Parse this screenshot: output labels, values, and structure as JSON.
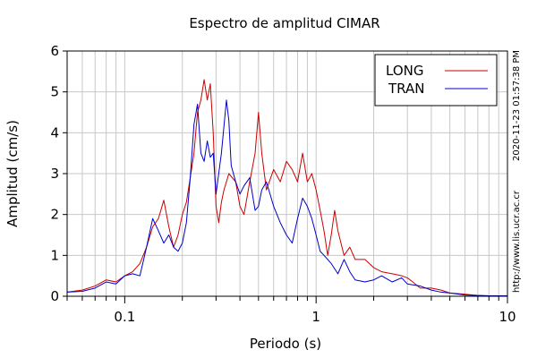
{
  "chart_data": {
    "type": "line",
    "title": "Espectro de amplitud CIMAR",
    "xlabel": "Periodo (s)",
    "ylabel": "Amplitud (cm/s)",
    "x_scale": "log",
    "xlim": [
      0.05,
      10
    ],
    "ylim": [
      0,
      6
    ],
    "x_ticks": [
      {
        "value": 0.1,
        "label": "0.1"
      },
      {
        "value": 1,
        "label": "1"
      },
      {
        "value": 10,
        "label": "10"
      }
    ],
    "y_ticks": [
      {
        "value": 0,
        "label": "0"
      },
      {
        "value": 1,
        "label": "1"
      },
      {
        "value": 2,
        "label": "2"
      },
      {
        "value": 3,
        "label": "3"
      },
      {
        "value": 4,
        "label": "4"
      },
      {
        "value": 5,
        "label": "5"
      },
      {
        "value": 6,
        "label": "6"
      }
    ],
    "grid": true,
    "legend_position": "top-right",
    "series": [
      {
        "name": "LONG",
        "color": "#cc0000",
        "x": [
          0.05,
          0.06,
          0.07,
          0.08,
          0.09,
          0.1,
          0.11,
          0.12,
          0.13,
          0.14,
          0.15,
          0.16,
          0.17,
          0.18,
          0.19,
          0.2,
          0.21,
          0.22,
          0.23,
          0.24,
          0.25,
          0.26,
          0.27,
          0.28,
          0.29,
          0.3,
          0.31,
          0.32,
          0.33,
          0.35,
          0.38,
          0.4,
          0.42,
          0.45,
          0.48,
          0.5,
          0.52,
          0.55,
          0.6,
          0.65,
          0.7,
          0.75,
          0.8,
          0.85,
          0.9,
          0.95,
          1.0,
          1.05,
          1.1,
          1.15,
          1.2,
          1.25,
          1.3,
          1.4,
          1.5,
          1.6,
          1.8,
          2.0,
          2.2,
          2.5,
          2.8,
          3.0,
          3.2,
          3.5,
          4.0,
          4.5,
          5.0,
          6.0,
          7.0,
          8.0,
          9.0,
          10.0
        ],
        "y": [
          0.1,
          0.15,
          0.25,
          0.4,
          0.35,
          0.5,
          0.6,
          0.8,
          1.2,
          1.7,
          1.9,
          2.35,
          1.7,
          1.2,
          1.5,
          2.0,
          2.3,
          2.9,
          3.5,
          4.5,
          4.8,
          5.3,
          4.8,
          5.2,
          4.0,
          2.2,
          1.8,
          2.3,
          2.6,
          3.0,
          2.8,
          2.2,
          2.0,
          2.8,
          3.5,
          4.5,
          3.5,
          2.6,
          3.1,
          2.8,
          3.3,
          3.1,
          2.8,
          3.5,
          2.8,
          3.0,
          2.6,
          2.1,
          1.6,
          1.0,
          1.5,
          2.1,
          1.6,
          1.0,
          1.2,
          0.9,
          0.9,
          0.7,
          0.6,
          0.55,
          0.5,
          0.45,
          0.35,
          0.2,
          0.2,
          0.15,
          0.08,
          0.05,
          0.02,
          0.01,
          0.01,
          0.01
        ]
      },
      {
        "name": "TRAN",
        "color": "#0000cc",
        "x": [
          0.05,
          0.06,
          0.07,
          0.08,
          0.09,
          0.1,
          0.11,
          0.12,
          0.13,
          0.14,
          0.15,
          0.16,
          0.17,
          0.18,
          0.19,
          0.2,
          0.21,
          0.22,
          0.23,
          0.24,
          0.25,
          0.26,
          0.27,
          0.28,
          0.29,
          0.3,
          0.32,
          0.34,
          0.35,
          0.36,
          0.38,
          0.4,
          0.42,
          0.45,
          0.48,
          0.5,
          0.52,
          0.55,
          0.6,
          0.65,
          0.7,
          0.75,
          0.8,
          0.85,
          0.9,
          0.95,
          1.0,
          1.05,
          1.1,
          1.2,
          1.3,
          1.4,
          1.5,
          1.6,
          1.8,
          2.0,
          2.2,
          2.5,
          2.8,
          3.0,
          3.5,
          4.0,
          4.5,
          5.0,
          6.0,
          7.0,
          8.0,
          10.0
        ],
        "y": [
          0.1,
          0.12,
          0.2,
          0.35,
          0.3,
          0.5,
          0.55,
          0.5,
          1.2,
          1.9,
          1.6,
          1.3,
          1.5,
          1.2,
          1.1,
          1.3,
          1.8,
          2.9,
          4.2,
          4.7,
          3.5,
          3.3,
          3.8,
          3.4,
          3.5,
          2.5,
          3.5,
          4.8,
          4.3,
          3.2,
          2.8,
          2.5,
          2.7,
          2.9,
          2.1,
          2.2,
          2.6,
          2.8,
          2.2,
          1.8,
          1.5,
          1.3,
          1.9,
          2.4,
          2.2,
          1.9,
          1.5,
          1.1,
          1.0,
          0.8,
          0.55,
          0.9,
          0.6,
          0.4,
          0.35,
          0.4,
          0.5,
          0.35,
          0.45,
          0.3,
          0.25,
          0.15,
          0.1,
          0.08,
          0.03,
          0.02,
          0.01,
          0.01
        ]
      }
    ]
  },
  "side_text": {
    "timestamp": "2020-11-23 01:57:38 PM",
    "url": "http://www.lis.ucr.ac.cr"
  }
}
